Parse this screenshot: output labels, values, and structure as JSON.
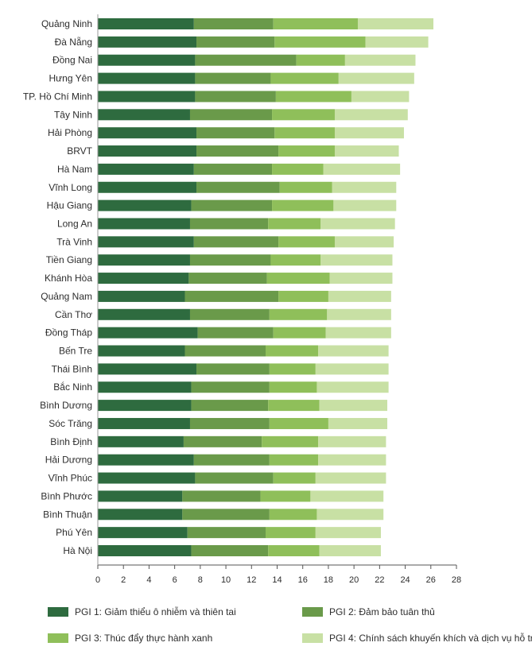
{
  "chart_data": {
    "type": "bar",
    "orientation": "horizontal",
    "stacked": true,
    "title": "",
    "xlabel": "",
    "ylabel": "",
    "xlim": [
      0,
      28
    ],
    "xticks": [
      0,
      2,
      4,
      6,
      8,
      10,
      12,
      14,
      16,
      18,
      20,
      22,
      24,
      26,
      28
    ],
    "grid": false,
    "legend_position": "bottom",
    "categories": [
      "Quảng Ninh",
      "Đà Nẵng",
      "Đồng Nai",
      "Hưng Yên",
      "TP. Hồ Chí Minh",
      "Tây Ninh",
      "Hải Phòng",
      "BRVT",
      "Hà Nam",
      "Vĩnh Long",
      "Hậu Giang",
      "Long An",
      "Trà Vinh",
      "Tiền Giang",
      "Khánh Hòa",
      "Quảng Nam",
      "Cần Thơ",
      "Đồng Tháp",
      "Bến Tre",
      "Thái Bình",
      "Bắc Ninh",
      "Bình Dương",
      "Sóc Trăng",
      "Bình Định",
      "Hải Dương",
      "Vĩnh Phúc",
      "Bình Phước",
      "Bình Thuận",
      "Phú Yên",
      "Hà Nội"
    ],
    "series": [
      {
        "name": "PGI 1: Giảm thiểu ô nhiễm và thiên tai",
        "color": "#2e6b3f",
        "values": [
          7.5,
          7.7,
          7.6,
          7.6,
          7.6,
          7.2,
          7.7,
          7.7,
          7.5,
          7.7,
          7.3,
          7.2,
          7.5,
          7.2,
          7.1,
          6.8,
          7.2,
          7.8,
          6.8,
          7.7,
          7.3,
          7.3,
          7.2,
          6.7,
          7.5,
          7.6,
          6.6,
          6.6,
          7.0,
          7.3
        ]
      },
      {
        "name": "PGI 2: Đảm bảo tuân thủ",
        "color": "#6a9a4a",
        "values": [
          6.2,
          6.1,
          7.9,
          5.9,
          6.3,
          6.4,
          6.1,
          6.4,
          6.1,
          6.5,
          6.3,
          6.1,
          6.6,
          6.3,
          6.1,
          7.3,
          6.2,
          5.9,
          6.3,
          5.7,
          6.1,
          6.0,
          6.2,
          6.1,
          5.9,
          6.1,
          6.1,
          6.8,
          6.1,
          6.0
        ]
      },
      {
        "name": "PGI 3: Thúc đẩy thực hành xanh",
        "color": "#8fbf5a",
        "values": [
          6.6,
          7.1,
          3.8,
          5.3,
          5.9,
          4.9,
          4.7,
          4.4,
          4.0,
          4.1,
          4.8,
          4.1,
          4.4,
          3.9,
          4.9,
          3.9,
          4.5,
          4.1,
          4.1,
          3.6,
          3.7,
          4.0,
          4.6,
          4.4,
          3.8,
          3.3,
          3.9,
          3.7,
          3.9,
          4.0
        ]
      },
      {
        "name": "PGI 4: Chính sách khuyến khích và dịch vụ hỗ trợ",
        "color": "#c8e0a4",
        "values": [
          5.9,
          4.9,
          5.5,
          5.9,
          4.5,
          5.7,
          5.4,
          5.0,
          6.0,
          5.0,
          4.9,
          5.8,
          4.6,
          5.6,
          4.9,
          4.9,
          5.0,
          5.1,
          5.5,
          5.7,
          5.6,
          5.3,
          4.6,
          5.3,
          5.3,
          5.5,
          5.7,
          5.2,
          5.1,
          4.8
        ]
      }
    ]
  }
}
